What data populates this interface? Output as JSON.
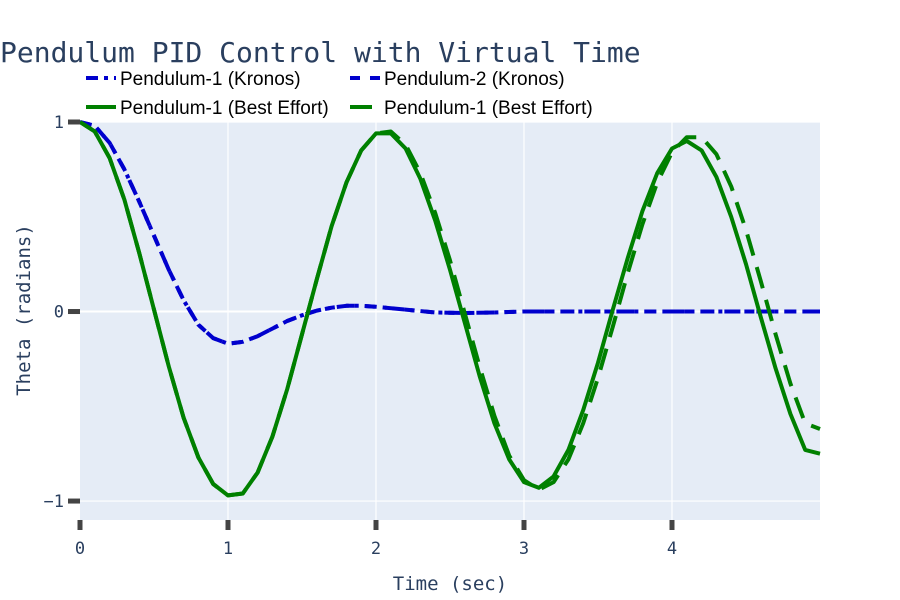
{
  "chart_data": {
    "type": "line",
    "title": "Pendulum PID Control with Virtual Time",
    "xlabel": "Time (sec)",
    "ylabel": "Theta (radians)",
    "xlim": [
      0,
      5
    ],
    "ylim": [
      -1.1,
      1.0
    ],
    "xticks": [
      "0",
      "1",
      "2",
      "3",
      "4"
    ],
    "yticks": [
      "1",
      "0",
      "−1"
    ],
    "grid": true,
    "legend_position": "top",
    "plot_background": "#e5ecf6",
    "series": [
      {
        "name": "Pendulum-1 (Kronos)",
        "color": "#0000cd",
        "dash": "dashdot",
        "x": [
          0,
          0.1,
          0.2,
          0.3,
          0.4,
          0.5,
          0.6,
          0.7,
          0.8,
          0.9,
          1.0,
          1.1,
          1.2,
          1.3,
          1.4,
          1.5,
          1.6,
          1.7,
          1.8,
          1.9,
          2.0,
          2.2,
          2.4,
          2.6,
          2.8,
          3.0,
          3.5,
          4.0,
          4.5,
          5.0
        ],
        "y": [
          1.0,
          0.98,
          0.89,
          0.75,
          0.58,
          0.4,
          0.22,
          0.06,
          -0.07,
          -0.14,
          -0.17,
          -0.16,
          -0.13,
          -0.09,
          -0.05,
          -0.02,
          0.005,
          0.02,
          0.03,
          0.03,
          0.025,
          0.01,
          -0.005,
          -0.008,
          -0.005,
          0.0,
          0.0,
          0.0,
          0.0,
          0.0
        ]
      },
      {
        "name": "Pendulum-2 (Kronos)",
        "color": "#0000cd",
        "dash": "dash",
        "x": [
          0,
          0.1,
          0.2,
          0.3,
          0.4,
          0.5,
          0.6,
          0.7,
          0.8,
          0.9,
          1.0,
          1.1,
          1.2,
          1.3,
          1.4,
          1.5,
          1.6,
          1.7,
          1.8,
          1.9,
          2.0,
          2.2,
          2.4,
          2.6,
          2.8,
          3.0,
          3.5,
          4.0,
          4.5,
          5.0
        ],
        "y": [
          1.0,
          0.98,
          0.89,
          0.75,
          0.58,
          0.4,
          0.22,
          0.06,
          -0.07,
          -0.14,
          -0.17,
          -0.16,
          -0.13,
          -0.09,
          -0.05,
          -0.02,
          0.005,
          0.02,
          0.03,
          0.03,
          0.025,
          0.01,
          -0.005,
          -0.008,
          -0.005,
          0.0,
          0.0,
          0.0,
          0.0,
          0.0
        ]
      },
      {
        "name": "Pendulum-1 (Best Effort)",
        "color": "#008000",
        "dash": "solid",
        "x": [
          0,
          0.1,
          0.2,
          0.3,
          0.4,
          0.5,
          0.6,
          0.7,
          0.8,
          0.9,
          1.0,
          1.1,
          1.2,
          1.3,
          1.4,
          1.5,
          1.6,
          1.7,
          1.8,
          1.9,
          2.0,
          2.1,
          2.2,
          2.3,
          2.4,
          2.5,
          2.6,
          2.7,
          2.8,
          2.9,
          3.0,
          3.1,
          3.2,
          3.3,
          3.4,
          3.5,
          3.6,
          3.7,
          3.8,
          3.9,
          4.0,
          4.1,
          4.2,
          4.3,
          4.4,
          4.5,
          4.6,
          4.7,
          4.8,
          4.9,
          5.0
        ],
        "y": [
          1.0,
          0.95,
          0.81,
          0.59,
          0.31,
          0.01,
          -0.29,
          -0.56,
          -0.77,
          -0.91,
          -0.97,
          -0.96,
          -0.85,
          -0.66,
          -0.41,
          -0.12,
          0.17,
          0.45,
          0.68,
          0.85,
          0.94,
          0.94,
          0.86,
          0.7,
          0.48,
          0.22,
          -0.06,
          -0.34,
          -0.59,
          -0.78,
          -0.9,
          -0.93,
          -0.87,
          -0.73,
          -0.52,
          -0.27,
          0.01,
          0.28,
          0.53,
          0.73,
          0.86,
          0.9,
          0.85,
          0.71,
          0.5,
          0.25,
          -0.03,
          -0.3,
          -0.54,
          -0.73,
          -0.75
        ]
      },
      {
        "name": "Pendulum-1 (Best Effort)",
        "color": "#008000",
        "dash": "longdash",
        "x": [
          0,
          0.1,
          0.2,
          0.3,
          0.4,
          0.5,
          0.6,
          0.7,
          0.8,
          0.9,
          1.0,
          1.1,
          1.2,
          1.3,
          1.4,
          1.5,
          1.6,
          1.7,
          1.8,
          1.9,
          2.0,
          2.1,
          2.2,
          2.3,
          2.4,
          2.5,
          2.6,
          2.7,
          2.8,
          2.9,
          3.0,
          3.1,
          3.2,
          3.3,
          3.4,
          3.5,
          3.6,
          3.7,
          3.8,
          3.9,
          4.0,
          4.1,
          4.2,
          4.3,
          4.4,
          4.5,
          4.6,
          4.7,
          4.8,
          4.9,
          5.0
        ],
        "y": [
          1.0,
          0.95,
          0.81,
          0.59,
          0.31,
          0.01,
          -0.29,
          -0.56,
          -0.77,
          -0.91,
          -0.97,
          -0.96,
          -0.85,
          -0.66,
          -0.41,
          -0.12,
          0.17,
          0.45,
          0.68,
          0.85,
          0.94,
          0.95,
          0.88,
          0.73,
          0.52,
          0.27,
          -0.01,
          -0.29,
          -0.55,
          -0.76,
          -0.89,
          -0.94,
          -0.9,
          -0.78,
          -0.59,
          -0.35,
          -0.08,
          0.2,
          0.46,
          0.68,
          0.84,
          0.92,
          0.92,
          0.83,
          0.66,
          0.43,
          0.16,
          -0.12,
          -0.38,
          -0.59,
          -0.62
        ]
      }
    ]
  }
}
